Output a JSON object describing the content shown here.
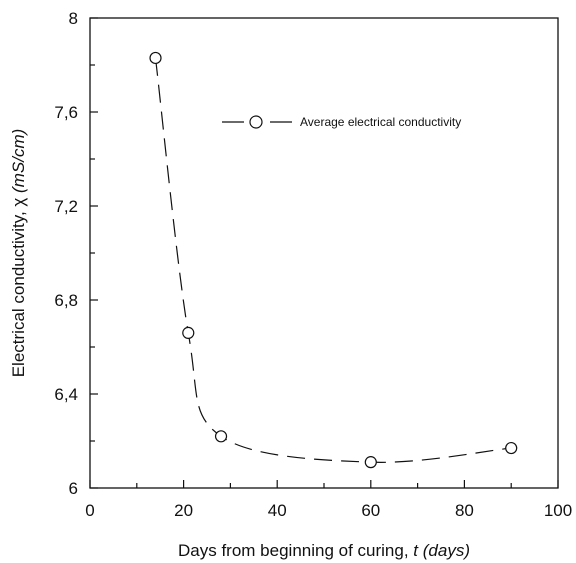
{
  "chart_data": {
    "type": "line",
    "title": "",
    "xlabel": "Days from beginning of curing, ",
    "xlabel_italic": "t (days)",
    "ylabel": "Electrical conductivity, χ ",
    "ylabel_italic": "(mS/cm)",
    "xlim": [
      0,
      100
    ],
    "ylim": [
      6,
      8
    ],
    "xticks": [
      0,
      20,
      40,
      60,
      80,
      100
    ],
    "xtick_labels": [
      "0",
      "20",
      "40",
      "60",
      "80",
      "100"
    ],
    "yticks": [
      6,
      6.4,
      6.8,
      7.2,
      7.6,
      8
    ],
    "ytick_labels": [
      "6",
      "6,4",
      "6,8",
      "7,2",
      "7,6",
      "8"
    ],
    "grid": false,
    "legend_position": "top-right",
    "series": [
      {
        "name": "Average electrical conductivity",
        "marker": "open-circle",
        "line_style": "dashed",
        "color": "#111111",
        "x": [
          14,
          21,
          28,
          60,
          90
        ],
        "y": [
          7.83,
          6.66,
          6.22,
          6.11,
          6.17
        ]
      }
    ]
  }
}
